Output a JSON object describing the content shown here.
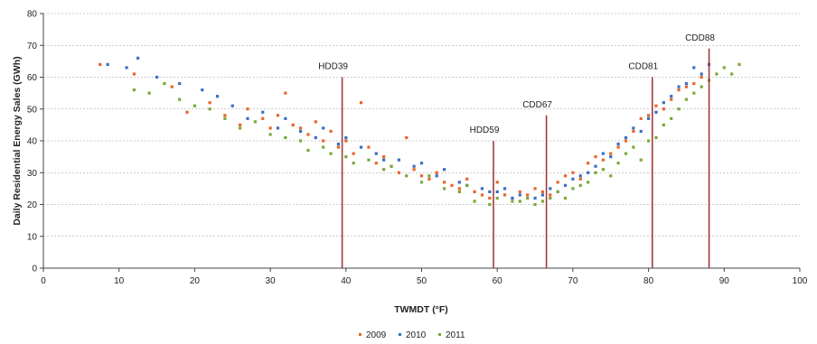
{
  "chart_data": {
    "type": "scatter",
    "title": "",
    "xlabel": "TWMDT (°F)",
    "ylabel": "Daily Residential Energy Sales (GWh)",
    "xlim": [
      0,
      100
    ],
    "ylim": [
      0,
      80
    ],
    "x_ticks": [
      0,
      10,
      20,
      30,
      40,
      50,
      60,
      70,
      80,
      90,
      100
    ],
    "y_ticks": [
      0,
      10,
      20,
      30,
      40,
      50,
      60,
      70,
      80
    ],
    "grid": "horizontal",
    "legend_position": "bottom-center",
    "series": [
      {
        "name": "2009",
        "color": "#e8662a",
        "points": [
          [
            7.5,
            64
          ],
          [
            12,
            61
          ],
          [
            17,
            57
          ],
          [
            19,
            49
          ],
          [
            22,
            52
          ],
          [
            24,
            48
          ],
          [
            26,
            45
          ],
          [
            27,
            50
          ],
          [
            29,
            47
          ],
          [
            30,
            44
          ],
          [
            31,
            48
          ],
          [
            32,
            55
          ],
          [
            33,
            45
          ],
          [
            34,
            44
          ],
          [
            35,
            42
          ],
          [
            36,
            46
          ],
          [
            37,
            40
          ],
          [
            38,
            43
          ],
          [
            39,
            38
          ],
          [
            40,
            40
          ],
          [
            41,
            36
          ],
          [
            42,
            52
          ],
          [
            43,
            38
          ],
          [
            44,
            33
          ],
          [
            45,
            35
          ],
          [
            46,
            32
          ],
          [
            47,
            30
          ],
          [
            48,
            41
          ],
          [
            49,
            31
          ],
          [
            50,
            29
          ],
          [
            51,
            28
          ],
          [
            52,
            30
          ],
          [
            53,
            27
          ],
          [
            54,
            26
          ],
          [
            55,
            25
          ],
          [
            56,
            28
          ],
          [
            57,
            24
          ],
          [
            58,
            23
          ],
          [
            59,
            22
          ],
          [
            60,
            27
          ],
          [
            61,
            23
          ],
          [
            62,
            22
          ],
          [
            63,
            24
          ],
          [
            64,
            23
          ],
          [
            65,
            25
          ],
          [
            66,
            24
          ],
          [
            67,
            23
          ],
          [
            68,
            27
          ],
          [
            69,
            29
          ],
          [
            70,
            30
          ],
          [
            71,
            28
          ],
          [
            72,
            33
          ],
          [
            73,
            35
          ],
          [
            74,
            34
          ],
          [
            75,
            36
          ],
          [
            76,
            38
          ],
          [
            77,
            40
          ],
          [
            78,
            43
          ],
          [
            79,
            47
          ],
          [
            80,
            48
          ],
          [
            81,
            51
          ],
          [
            82,
            50
          ],
          [
            83,
            53
          ],
          [
            84,
            56
          ],
          [
            85,
            57
          ],
          [
            86,
            58
          ],
          [
            87,
            60
          ]
        ]
      },
      {
        "name": "2010",
        "color": "#3b6fc4",
        "points": [
          [
            8.5,
            64
          ],
          [
            11,
            63
          ],
          [
            12.5,
            66
          ],
          [
            15,
            60
          ],
          [
            18,
            58
          ],
          [
            21,
            56
          ],
          [
            23,
            54
          ],
          [
            25,
            51
          ],
          [
            27,
            47
          ],
          [
            29,
            49
          ],
          [
            31,
            44
          ],
          [
            32,
            47
          ],
          [
            34,
            43
          ],
          [
            36,
            41
          ],
          [
            37,
            44
          ],
          [
            39,
            39
          ],
          [
            40,
            41
          ],
          [
            42,
            38
          ],
          [
            44,
            36
          ],
          [
            45,
            34
          ],
          [
            47,
            34
          ],
          [
            49,
            32
          ],
          [
            50,
            33
          ],
          [
            52,
            29
          ],
          [
            53,
            31
          ],
          [
            55,
            27
          ],
          [
            56,
            26
          ],
          [
            58,
            25
          ],
          [
            59,
            24
          ],
          [
            60,
            24
          ],
          [
            61,
            25
          ],
          [
            62,
            22
          ],
          [
            63,
            23
          ],
          [
            65,
            22
          ],
          [
            66,
            23
          ],
          [
            67,
            25
          ],
          [
            68,
            24
          ],
          [
            69,
            26
          ],
          [
            70,
            28
          ],
          [
            71,
            29
          ],
          [
            72,
            30
          ],
          [
            73,
            32
          ],
          [
            74,
            36
          ],
          [
            75,
            35
          ],
          [
            76,
            39
          ],
          [
            77,
            41
          ],
          [
            78,
            44
          ],
          [
            79,
            43
          ],
          [
            80,
            47
          ],
          [
            81,
            49
          ],
          [
            82,
            52
          ],
          [
            83,
            54
          ],
          [
            84,
            57
          ],
          [
            85,
            58
          ],
          [
            86,
            63
          ],
          [
            87,
            61
          ],
          [
            88,
            64
          ]
        ]
      },
      {
        "name": "2011",
        "color": "#7aa83a",
        "points": [
          [
            12,
            56
          ],
          [
            14,
            55
          ],
          [
            16,
            58
          ],
          [
            18,
            53
          ],
          [
            20,
            51
          ],
          [
            22,
            50
          ],
          [
            24,
            47
          ],
          [
            26,
            44
          ],
          [
            28,
            46
          ],
          [
            30,
            42
          ],
          [
            32,
            41
          ],
          [
            34,
            40
          ],
          [
            35,
            37
          ],
          [
            37,
            38
          ],
          [
            38,
            36
          ],
          [
            40,
            35
          ],
          [
            41,
            33
          ],
          [
            43,
            34
          ],
          [
            45,
            31
          ],
          [
            46,
            32
          ],
          [
            48,
            29
          ],
          [
            50,
            27
          ],
          [
            51,
            29
          ],
          [
            53,
            25
          ],
          [
            55,
            24
          ],
          [
            56,
            26
          ],
          [
            57,
            21
          ],
          [
            59,
            20
          ],
          [
            60,
            22
          ],
          [
            62,
            21
          ],
          [
            63,
            21
          ],
          [
            64,
            22
          ],
          [
            65,
            20
          ],
          [
            66,
            21
          ],
          [
            67,
            22
          ],
          [
            68,
            24
          ],
          [
            69,
            22
          ],
          [
            70,
            25
          ],
          [
            71,
            26
          ],
          [
            72,
            27
          ],
          [
            73,
            30
          ],
          [
            74,
            31
          ],
          [
            75,
            29
          ],
          [
            76,
            33
          ],
          [
            77,
            36
          ],
          [
            78,
            38
          ],
          [
            79,
            34
          ],
          [
            80,
            40
          ],
          [
            81,
            41
          ],
          [
            82,
            45
          ],
          [
            83,
            47
          ],
          [
            84,
            50
          ],
          [
            85,
            53
          ],
          [
            86,
            55
          ],
          [
            87,
            57
          ],
          [
            88,
            59
          ],
          [
            89,
            61
          ],
          [
            90,
            63
          ],
          [
            91,
            61
          ],
          [
            92,
            64
          ]
        ]
      }
    ],
    "vertical_markers": [
      {
        "label": "HDD39",
        "x": 39.5,
        "top": 60
      },
      {
        "label": "HDD59",
        "x": 59.5,
        "top": 40
      },
      {
        "label": "CDD67",
        "x": 66.5,
        "top": 48
      },
      {
        "label": "CDD81",
        "x": 80.5,
        "top": 60
      },
      {
        "label": "CDD88",
        "x": 88,
        "top": 69
      }
    ],
    "marker_color": "#a33b3b"
  }
}
